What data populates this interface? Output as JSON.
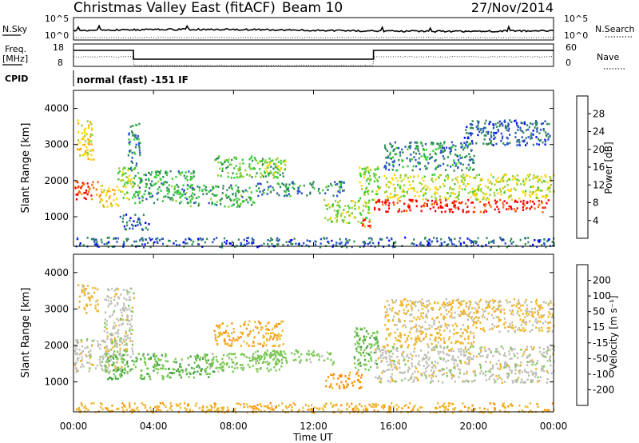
{
  "header": {
    "title": "Christmas Valley East (fitACF)",
    "beam": "Beam 10",
    "date": "27/Nov/2014"
  },
  "noise_panel": {
    "left_label": "N.Sky",
    "right_label": "N.Search",
    "left_ticks": [
      "10^5",
      "10^0"
    ],
    "right_ticks": [
      "10^5",
      "10^0"
    ]
  },
  "freq_panel": {
    "left_label_1": "Freq.",
    "left_label_2": "[MHz]",
    "right_label": "Nave",
    "left_ticks": [
      "18",
      "8"
    ],
    "right_ticks": [
      "60",
      "0"
    ]
  },
  "cpid": {
    "label": "CPID",
    "value": "normal (fast) -151 IF"
  },
  "x_axis": {
    "label": "Time UT",
    "ticks": [
      "00:00",
      "04:00",
      "08:00",
      "12:00",
      "16:00",
      "20:00",
      "00:00"
    ]
  },
  "colors": {
    "power_scale": [
      "#0000ff",
      "#2850c8",
      "#2e8b57",
      "#32cd32",
      "#9acd32",
      "#ffd700",
      "#ffa500",
      "#ff6400",
      "#ff0000"
    ],
    "velocity_scale": [
      "#1e3cb4",
      "#2e6e3c",
      "#3ca03c",
      "#78c850",
      "#bebeb4",
      "#f0b428",
      "#ff8c00",
      "#ff5000",
      "#ff0000"
    ]
  },
  "chart_data": [
    {
      "type": "heatmap",
      "quantity": "power",
      "x_range_hours": [
        0,
        24
      ],
      "ylabel": "Slant Range [km]",
      "y_ticks": [
        "1000",
        "2000",
        "3000",
        "4000"
      ],
      "ylim": [
        180,
        4500
      ],
      "colorbar_label": "Power [dB]",
      "colorbar_ticks": [
        "4",
        "8",
        "12",
        "16",
        "20",
        "24",
        "28"
      ],
      "colorbar_range": [
        0,
        30
      ],
      "regions": [
        {
          "x": [
            0.0,
            1.2
          ],
          "y": [
            1500,
            2000
          ],
          "value": 26
        },
        {
          "x": [
            1.2,
            2.2
          ],
          "y": [
            1300,
            1900
          ],
          "value": 20
        },
        {
          "x": [
            2.2,
            3.0
          ],
          "y": [
            1500,
            2400
          ],
          "value": 14
        },
        {
          "x": [
            0.1,
            1.0
          ],
          "y": [
            2600,
            3700
          ],
          "value": 18
        },
        {
          "x": [
            2.7,
            3.3
          ],
          "y": [
            2300,
            3600
          ],
          "value": 8
        },
        {
          "x": [
            2.3,
            3.8
          ],
          "y": [
            650,
            1100
          ],
          "value": 6
        },
        {
          "x": [
            3.0,
            6.0
          ],
          "y": [
            1400,
            2300
          ],
          "value": 10
        },
        {
          "x": [
            5.8,
            9.0
          ],
          "y": [
            1300,
            1900
          ],
          "value": 10
        },
        {
          "x": [
            7.0,
            10.5
          ],
          "y": [
            2100,
            2700
          ],
          "value": 12
        },
        {
          "x": [
            9.5,
            10.6
          ],
          "y": [
            2200,
            2600
          ],
          "value": 16
        },
        {
          "x": [
            9.0,
            13.5
          ],
          "y": [
            1600,
            2000
          ],
          "value": 8
        },
        {
          "x": [
            12.5,
            14.8
          ],
          "y": [
            850,
            1500
          ],
          "value": 14
        },
        {
          "x": [
            14.3,
            14.8
          ],
          "y": [
            700,
            1000
          ],
          "value": 26
        },
        {
          "x": [
            14.2,
            15.3
          ],
          "y": [
            1400,
            2400
          ],
          "value": 14
        },
        {
          "x": [
            15.0,
            24.0
          ],
          "y": [
            1150,
            1500
          ],
          "value": 28
        },
        {
          "x": [
            15.5,
            24.0
          ],
          "y": [
            1500,
            2200
          ],
          "value": 16
        },
        {
          "x": [
            15.5,
            20.0
          ],
          "y": [
            2300,
            3100
          ],
          "value": 8
        },
        {
          "x": [
            19.5,
            23.8
          ],
          "y": [
            3000,
            3700
          ],
          "value": 6
        },
        {
          "x": [
            0.0,
            24.0
          ],
          "y": [
            180,
            450
          ],
          "value": 6
        }
      ]
    },
    {
      "type": "heatmap",
      "quantity": "velocity",
      "x_range_hours": [
        0,
        24
      ],
      "ylabel": "Slant Range [km]",
      "y_ticks": [
        "1000",
        "2000",
        "3000",
        "4000"
      ],
      "ylim": [
        180,
        4500
      ],
      "colorbar_label": "Velocity [m s⁻¹]",
      "colorbar_ticks": [
        "200",
        "100",
        "50",
        "15",
        "-15",
        "-50",
        "-100",
        "-200"
      ],
      "colorbar_range": [
        -250,
        250
      ],
      "regions": [
        {
          "x": [
            0.0,
            2.5
          ],
          "y": [
            1300,
            2200
          ],
          "value": 0
        },
        {
          "x": [
            1.5,
            3.0
          ],
          "y": [
            1700,
            3600
          ],
          "value": 0
        },
        {
          "x": [
            0.2,
            1.2
          ],
          "y": [
            2900,
            3700
          ],
          "value": -30
        },
        {
          "x": [
            1.5,
            7.0
          ],
          "y": [
            1100,
            1800
          ],
          "value": 45
        },
        {
          "x": [
            6.5,
            10.5
          ],
          "y": [
            1300,
            1800
          ],
          "value": 30
        },
        {
          "x": [
            7.0,
            10.5
          ],
          "y": [
            2000,
            2700
          ],
          "value": -40
        },
        {
          "x": [
            9.0,
            13.0
          ],
          "y": [
            1500,
            1900
          ],
          "value": 30
        },
        {
          "x": [
            12.5,
            14.5
          ],
          "y": [
            850,
            1300
          ],
          "value": -60
        },
        {
          "x": [
            14.0,
            15.2
          ],
          "y": [
            1300,
            2500
          ],
          "value": 40
        },
        {
          "x": [
            15.0,
            24.0
          ],
          "y": [
            1000,
            2000
          ],
          "value": 0
        },
        {
          "x": [
            15.5,
            20.0
          ],
          "y": [
            2000,
            2400
          ],
          "value": -30
        },
        {
          "x": [
            15.5,
            24.0
          ],
          "y": [
            2400,
            3300
          ],
          "value": -20
        },
        {
          "x": [
            0.0,
            24.0
          ],
          "y": [
            180,
            450
          ],
          "value": -40
        }
      ]
    }
  ]
}
